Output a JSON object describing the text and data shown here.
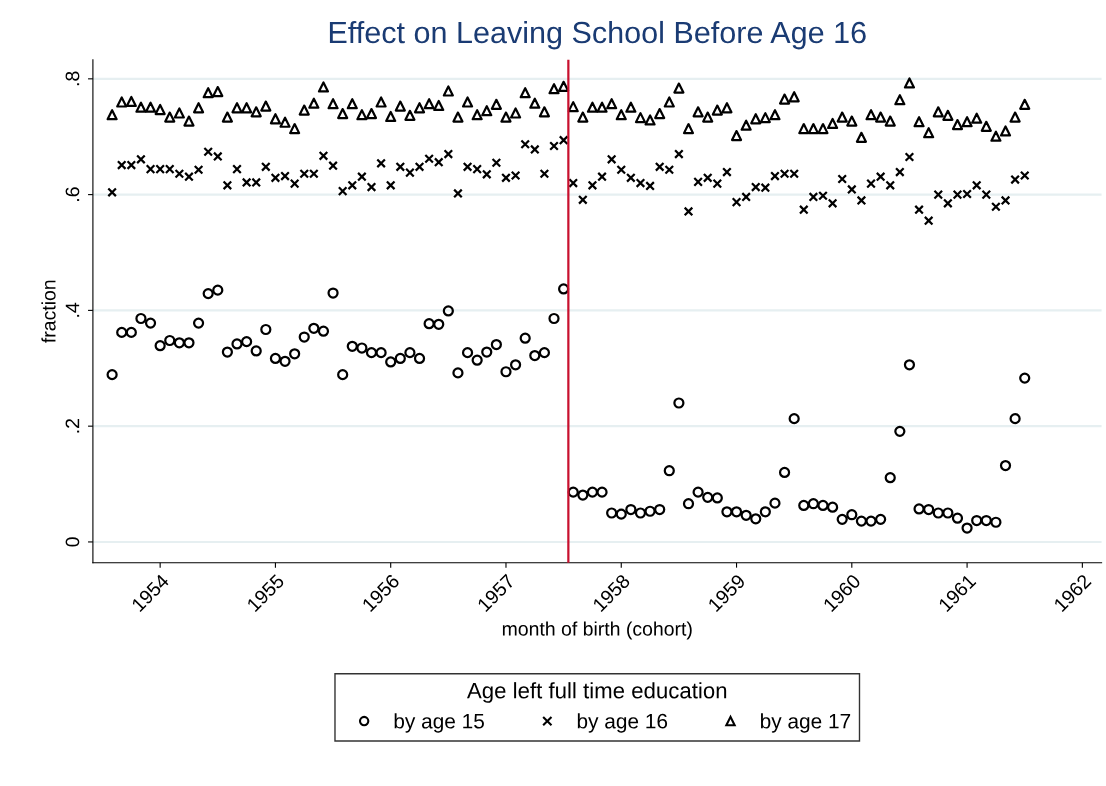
{
  "chart_data": {
    "type": "scatter",
    "title": "Effect on Leaving School Before Age 16",
    "xlabel": "month of birth (cohort)",
    "ylabel": "fraction",
    "legend_title": "Age left full time education",
    "x": [
      "1953-08",
      "1953-09",
      "1953-10",
      "1953-11",
      "1953-12",
      "1954-01",
      "1954-02",
      "1954-03",
      "1954-04",
      "1954-05",
      "1954-06",
      "1954-07",
      "1954-08",
      "1954-09",
      "1954-10",
      "1954-11",
      "1954-12",
      "1955-01",
      "1955-02",
      "1955-03",
      "1955-04",
      "1955-05",
      "1955-06",
      "1955-07",
      "1955-08",
      "1955-09",
      "1955-10",
      "1955-11",
      "1955-12",
      "1956-01",
      "1956-02",
      "1956-03",
      "1956-04",
      "1956-05",
      "1956-06",
      "1956-07",
      "1956-08",
      "1956-09",
      "1956-10",
      "1956-11",
      "1956-12",
      "1957-01",
      "1957-02",
      "1957-03",
      "1957-04",
      "1957-05",
      "1957-06",
      "1957-07",
      "1957-08",
      "1957-09",
      "1957-10",
      "1957-11",
      "1957-12",
      "1958-01",
      "1958-02",
      "1958-03",
      "1958-04",
      "1958-05",
      "1958-06",
      "1958-07",
      "1958-08",
      "1958-09",
      "1958-10",
      "1958-11",
      "1958-12",
      "1959-01",
      "1959-02",
      "1959-03",
      "1959-04",
      "1959-05",
      "1959-06",
      "1959-07",
      "1959-08",
      "1959-09",
      "1959-10",
      "1959-11",
      "1959-12",
      "1960-01",
      "1960-02",
      "1960-03",
      "1960-04",
      "1960-05",
      "1960-06",
      "1960-07",
      "1960-08",
      "1960-09",
      "1960-10",
      "1960-11",
      "1960-12",
      "1961-01",
      "1961-02",
      "1961-03",
      "1961-04",
      "1961-05",
      "1961-06",
      "1961-07"
    ],
    "series": [
      {
        "name": "by age 15",
        "color": "#000000",
        "marker": "circle",
        "values": [
          0.289,
          0.362,
          0.362,
          0.386,
          0.378,
          0.339,
          0.348,
          0.344,
          0.344,
          0.378,
          0.429,
          0.435,
          0.328,
          0.342,
          0.346,
          0.33,
          0.367,
          0.317,
          0.312,
          0.325,
          0.354,
          0.369,
          0.364,
          0.43,
          0.289,
          0.338,
          0.335,
          0.327,
          0.327,
          0.311,
          0.317,
          0.327,
          0.317,
          0.377,
          0.376,
          0.399,
          0.292,
          0.327,
          0.314,
          0.328,
          0.341,
          0.294,
          0.306,
          0.352,
          0.322,
          0.327,
          0.386,
          0.437,
          0.086,
          0.081,
          0.086,
          0.086,
          0.05,
          0.048,
          0.056,
          0.05,
          0.053,
          0.056,
          0.123,
          0.24,
          0.066,
          0.086,
          0.077,
          0.076,
          0.052,
          0.052,
          0.046,
          0.04,
          0.052,
          0.067,
          0.12,
          0.213,
          0.063,
          0.066,
          0.063,
          0.06,
          0.039,
          0.047,
          0.036,
          0.036,
          0.039,
          0.111,
          0.191,
          0.306,
          0.057,
          0.056,
          0.05,
          0.05,
          0.041,
          0.024,
          0.037,
          0.037,
          0.034,
          0.132,
          0.213,
          0.283
        ]
      },
      {
        "name": "by age 16",
        "color": "#000000",
        "marker": "cross",
        "values": [
          0.604,
          0.651,
          0.651,
          0.661,
          0.644,
          0.644,
          0.644,
          0.636,
          0.631,
          0.643,
          0.674,
          0.666,
          0.616,
          0.644,
          0.621,
          0.621,
          0.648,
          0.629,
          0.632,
          0.619,
          0.636,
          0.636,
          0.667,
          0.65,
          0.606,
          0.616,
          0.631,
          0.613,
          0.654,
          0.616,
          0.648,
          0.638,
          0.648,
          0.662,
          0.656,
          0.67,
          0.602,
          0.648,
          0.644,
          0.635,
          0.655,
          0.629,
          0.633,
          0.687,
          0.678,
          0.636,
          0.684,
          0.694,
          0.62,
          0.591,
          0.616,
          0.631,
          0.661,
          0.643,
          0.629,
          0.62,
          0.615,
          0.648,
          0.643,
          0.67,
          0.571,
          0.622,
          0.629,
          0.619,
          0.639,
          0.587,
          0.596,
          0.613,
          0.612,
          0.632,
          0.636,
          0.636,
          0.574,
          0.596,
          0.598,
          0.585,
          0.627,
          0.609,
          0.59,
          0.619,
          0.631,
          0.616,
          0.639,
          0.665,
          0.574,
          0.555,
          0.6,
          0.585,
          0.6,
          0.601,
          0.616,
          0.6,
          0.579,
          0.59,
          0.626,
          0.633
        ]
      },
      {
        "name": "by age 17",
        "color": "#000000",
        "marker": "triangle",
        "values": [
          0.738,
          0.76,
          0.761,
          0.751,
          0.751,
          0.747,
          0.734,
          0.741,
          0.727,
          0.75,
          0.776,
          0.778,
          0.734,
          0.75,
          0.75,
          0.743,
          0.753,
          0.731,
          0.725,
          0.714,
          0.746,
          0.758,
          0.786,
          0.757,
          0.74,
          0.757,
          0.738,
          0.74,
          0.76,
          0.735,
          0.753,
          0.737,
          0.75,
          0.757,
          0.754,
          0.779,
          0.734,
          0.76,
          0.738,
          0.745,
          0.756,
          0.734,
          0.741,
          0.776,
          0.758,
          0.743,
          0.783,
          0.787,
          0.752,
          0.734,
          0.751,
          0.751,
          0.757,
          0.738,
          0.751,
          0.733,
          0.729,
          0.74,
          0.76,
          0.784,
          0.714,
          0.743,
          0.734,
          0.746,
          0.75,
          0.702,
          0.72,
          0.731,
          0.733,
          0.738,
          0.765,
          0.769,
          0.714,
          0.714,
          0.714,
          0.723,
          0.734,
          0.727,
          0.699,
          0.738,
          0.734,
          0.727,
          0.764,
          0.793,
          0.726,
          0.707,
          0.743,
          0.737,
          0.721,
          0.726,
          0.732,
          0.718,
          0.701,
          0.71,
          0.734,
          0.756
        ]
      }
    ],
    "xlim": [
      "1953-06",
      "1962-03"
    ],
    "xticks": [
      "1954",
      "1955",
      "1956",
      "1957",
      "1958",
      "1959",
      "1960",
      "1961",
      "1962"
    ],
    "ylim": [
      -0.036,
      0.833
    ],
    "yticks": [
      {
        "value": 0,
        "label": "0"
      },
      {
        "value": 0.2,
        "label": ".2"
      },
      {
        "value": 0.4,
        "label": ".4"
      },
      {
        "value": 0.6,
        "label": ".6"
      },
      {
        "value": 0.8,
        "label": ".8"
      }
    ],
    "ref_lines": [
      {
        "axis": "x",
        "value": "1957-07-16",
        "color": "#c8102e"
      }
    ],
    "grid": "y",
    "legend": "bottom"
  }
}
